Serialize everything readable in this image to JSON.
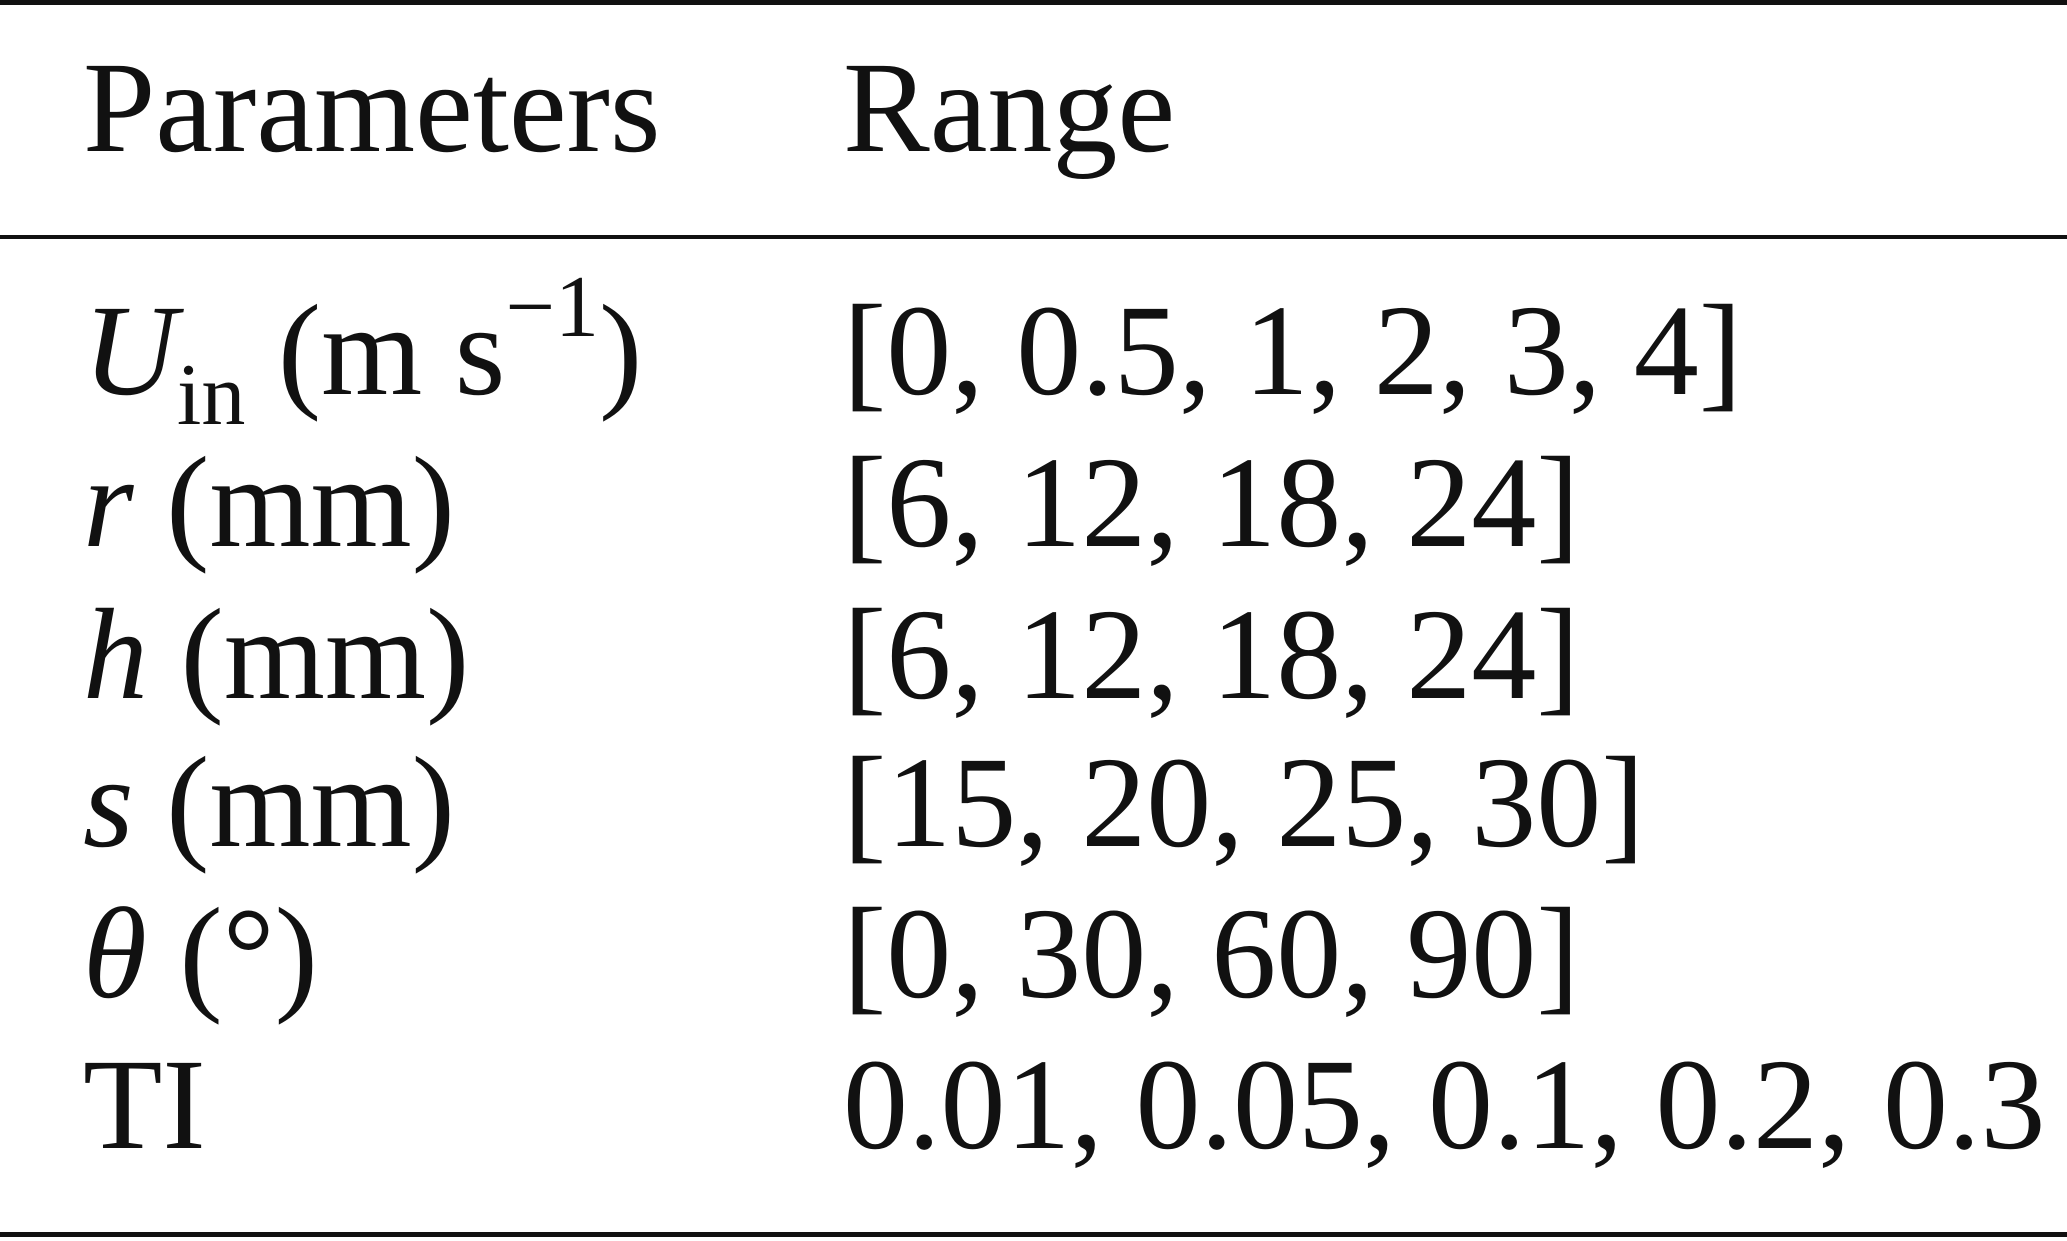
{
  "table": {
    "header": [
      "Parameters",
      "Range"
    ],
    "rows": [
      [
        {
          "symbol": "U",
          "subscript": "in",
          "unit_open": "(m s",
          "superscript": "−1",
          "unit_close": ")"
        },
        "[0, 0.5, 1, 2, 3, 4]"
      ],
      [
        {
          "symbol": "r",
          "unit": "(mm)"
        },
        "[6, 12, 18, 24]"
      ],
      [
        {
          "symbol": "h",
          "unit": "(mm)"
        },
        "[6, 12, 18, 24]"
      ],
      [
        {
          "symbol": "s",
          "unit": "(mm)"
        },
        "[15, 20, 25, 30]"
      ],
      [
        {
          "symbol": "θ",
          "unit": "(°)"
        },
        "[0, 30, 60, 90]"
      ],
      [
        {
          "text": "TI"
        },
        "0.01, 0.05, 0.1, 0.2, 0.3"
      ]
    ]
  }
}
